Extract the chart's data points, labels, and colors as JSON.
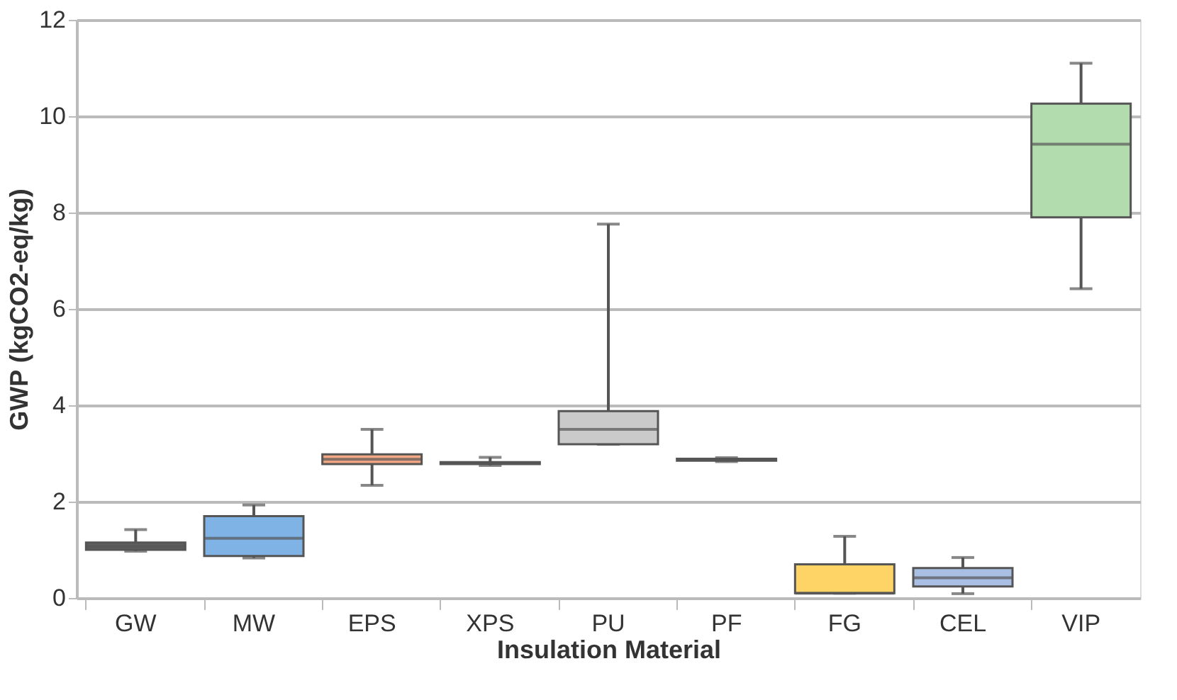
{
  "chart_data": {
    "type": "box",
    "xlabel": "Insulation Material",
    "ylabel": "GWP (kgCO2-eq/kg)",
    "categories": [
      "GW",
      "MW",
      "EPS",
      "XPS",
      "PU",
      "PF",
      "FG",
      "CEL",
      "VIP"
    ],
    "boxes": [
      {
        "low": 0.97,
        "q1": 1.0,
        "median": 1.07,
        "q3": 1.15,
        "high": 1.42
      },
      {
        "low": 0.83,
        "q1": 0.87,
        "median": 1.24,
        "q3": 1.7,
        "high": 1.93
      },
      {
        "low": 2.34,
        "q1": 2.78,
        "median": 2.88,
        "q3": 2.98,
        "high": 3.5
      },
      {
        "low": 2.75,
        "q1": 2.78,
        "median": 2.8,
        "q3": 2.82,
        "high": 2.92
      },
      {
        "low": 3.19,
        "q1": 3.19,
        "median": 3.5,
        "q3": 3.88,
        "high": 7.76
      },
      {
        "low": 2.83,
        "q1": 2.85,
        "median": 2.87,
        "q3": 2.89,
        "high": 2.91
      },
      {
        "low": 0.1,
        "q1": 0.1,
        "median": 0.1,
        "q3": 0.7,
        "high": 1.28
      },
      {
        "low": 0.09,
        "q1": 0.24,
        "median": 0.42,
        "q3": 0.62,
        "high": 0.84
      },
      {
        "low": 6.42,
        "q1": 7.9,
        "median": 9.42,
        "q3": 10.26,
        "high": 11.1
      }
    ],
    "colors": [
      "#5f5f5f",
      "#7fb3e6",
      "#f5a886",
      "#9a9a9a",
      "#cacaca",
      "#8a8a8a",
      "#ffd466",
      "#a9bfe4",
      "#b3dcae"
    ],
    "ylim": [
      0,
      12
    ],
    "yticks": [
      0,
      2,
      4,
      6,
      8,
      10,
      12
    ],
    "grid": "y"
  }
}
